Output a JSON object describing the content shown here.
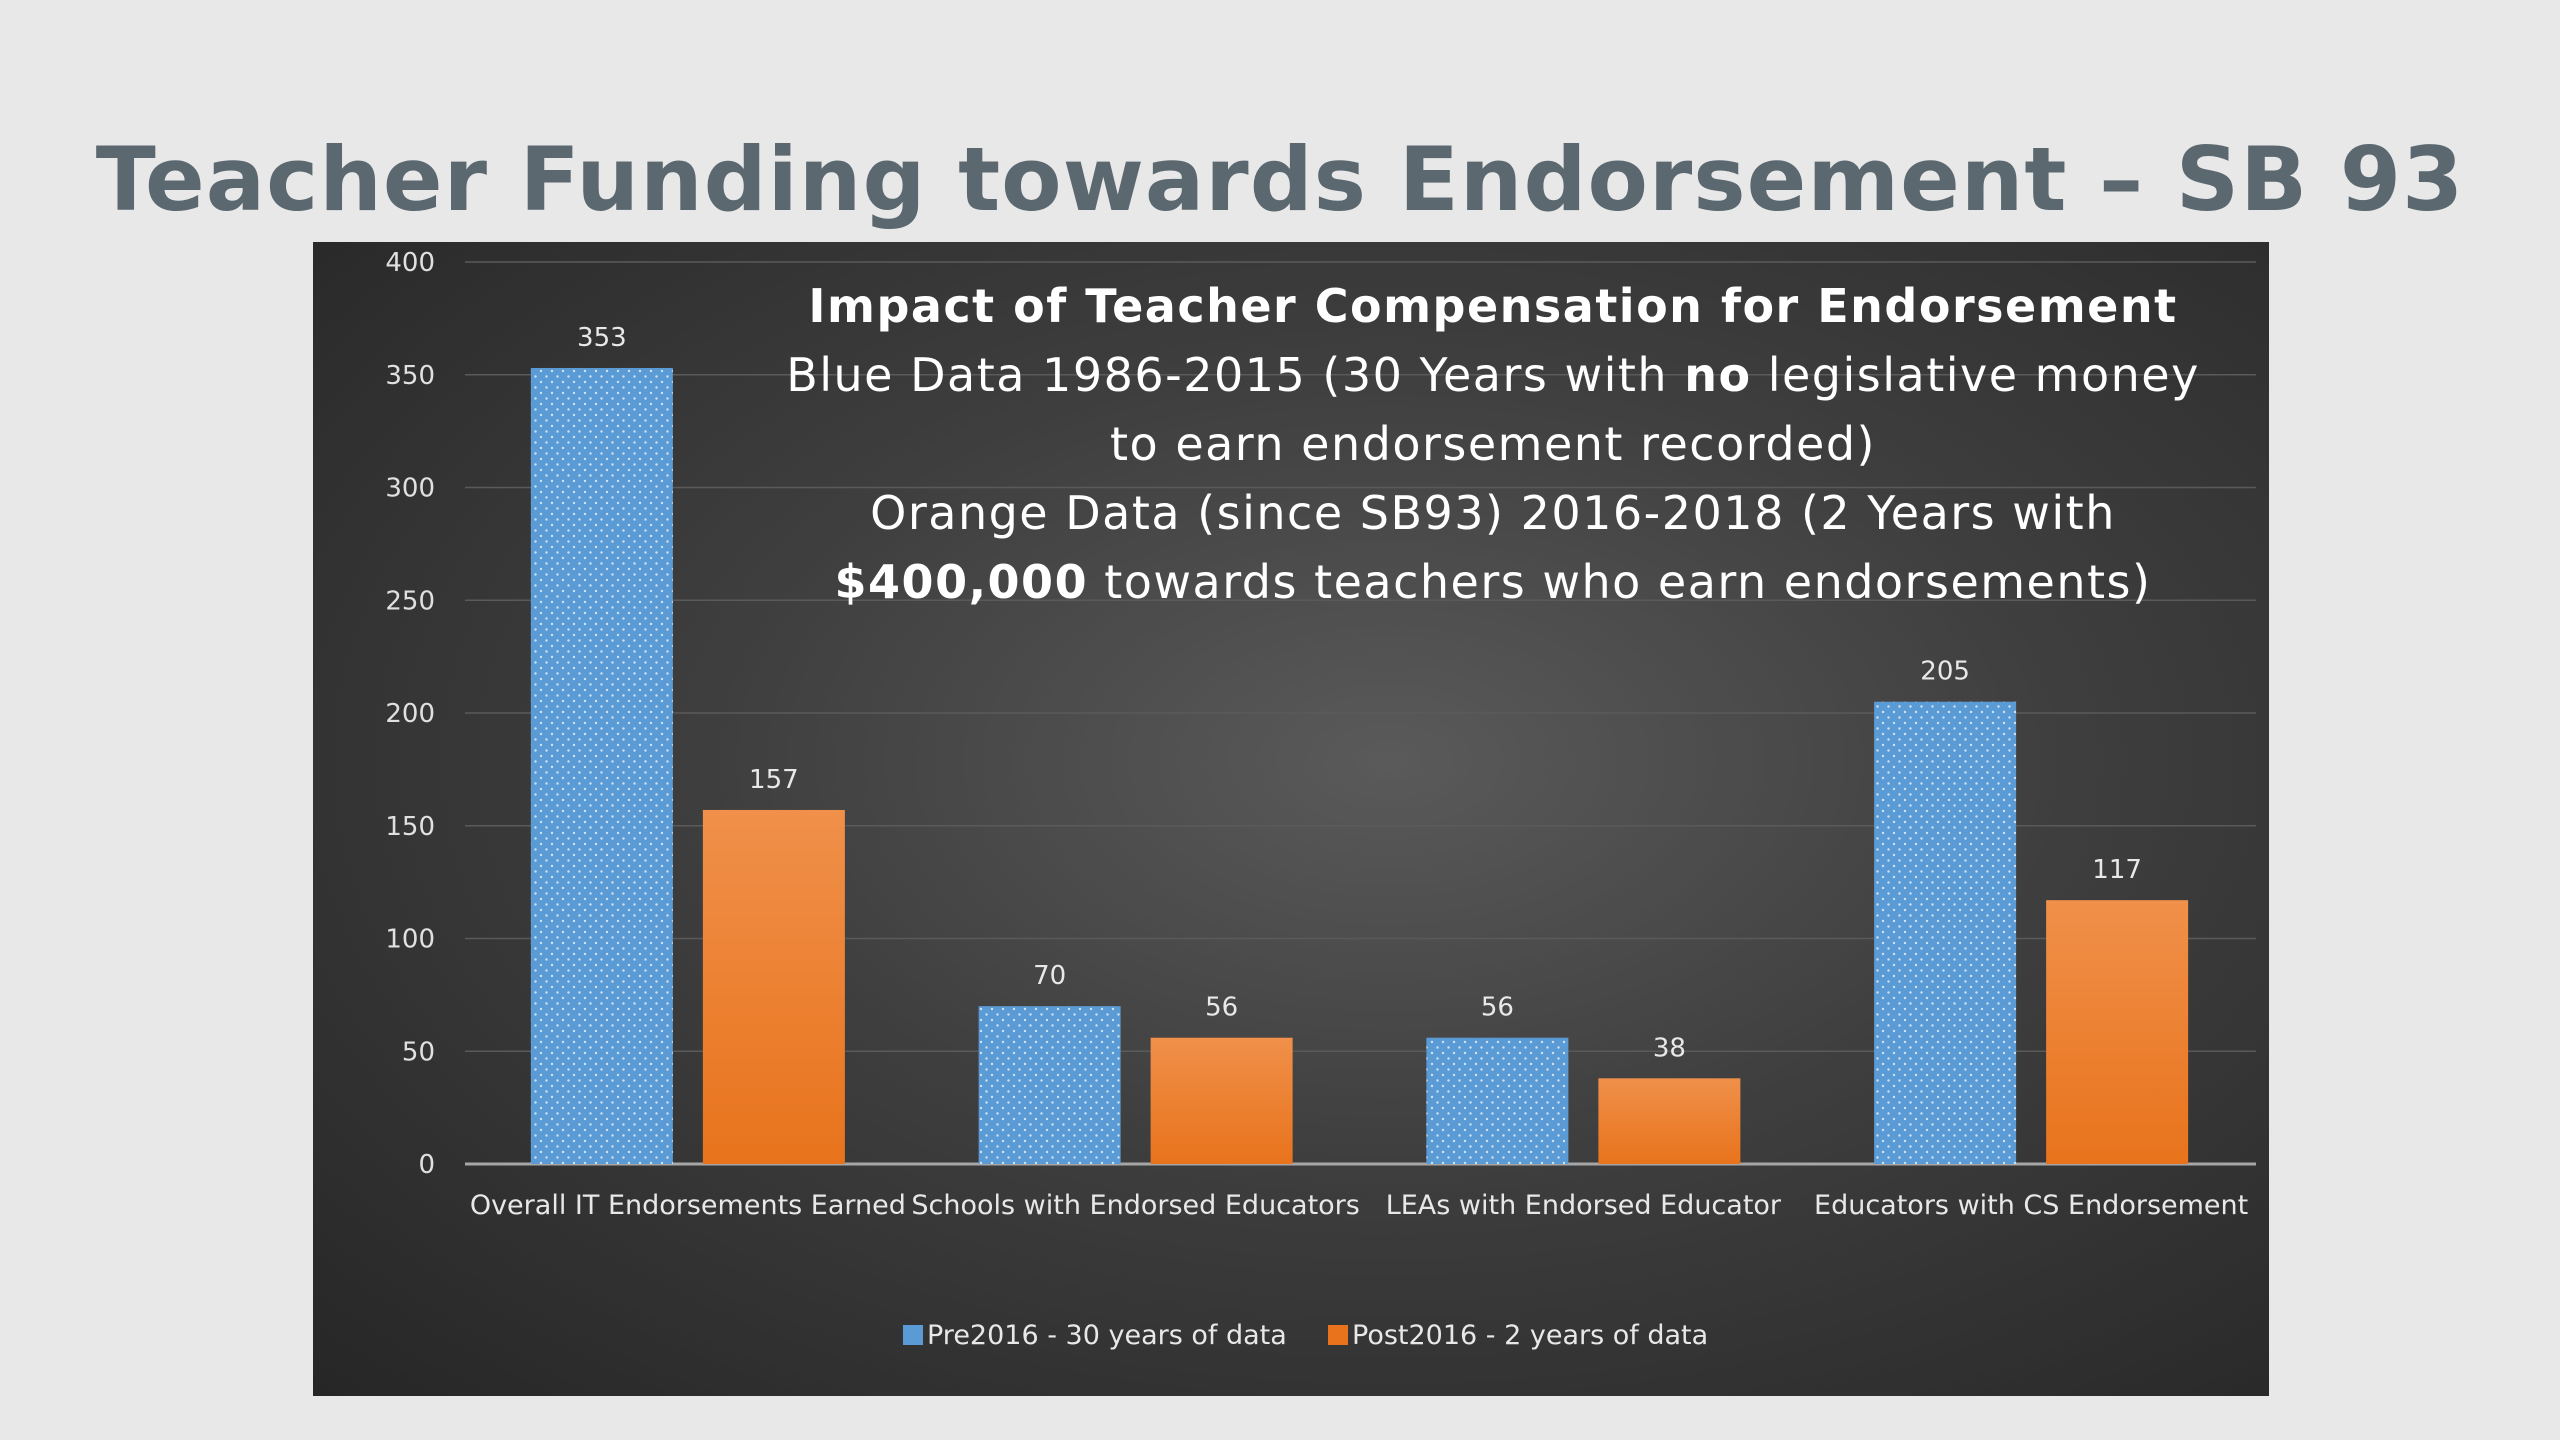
{
  "slide": {
    "title": "Teacher Funding towards Endorsement – SB 93"
  },
  "annotation": {
    "heading": "Impact of Teacher Compensation for Endorsement",
    "line1_before": "Blue Data 1986-2015 (30 Years with ",
    "line1_bold": "no",
    "line1_after": " legislative money",
    "line2": "to earn endorsement recorded)",
    "line3": "Orange Data (since SB93) 2016-2018 (2 Years with",
    "line4_bold": "$400,000",
    "line4_after": " towards teachers who earn endorsements)"
  },
  "colors": {
    "pre": "#5b9bd5",
    "post_top": "#f0904a",
    "post_bottom": "#e8731c",
    "grid": "#5a5a5a",
    "axis": "#a6a6a6"
  },
  "chart_data": {
    "type": "bar",
    "categories": [
      "Overall IT Endorsements Earned",
      "Schools with Endorsed Educators",
      "LEAs with Endorsed Educator",
      "Educators with CS Endorsement"
    ],
    "series": [
      {
        "name": "Pre2016 - 30 years of data",
        "values": [
          353,
          70,
          56,
          205
        ]
      },
      {
        "name": "Post2016 - 2 years of data",
        "values": [
          157,
          56,
          38,
          117
        ]
      }
    ],
    "y_ticks": [
      0,
      50,
      100,
      150,
      200,
      250,
      300,
      350,
      400
    ],
    "ylim": [
      0,
      400
    ],
    "grid": true,
    "legend_position": "bottom",
    "data_labels": true
  }
}
